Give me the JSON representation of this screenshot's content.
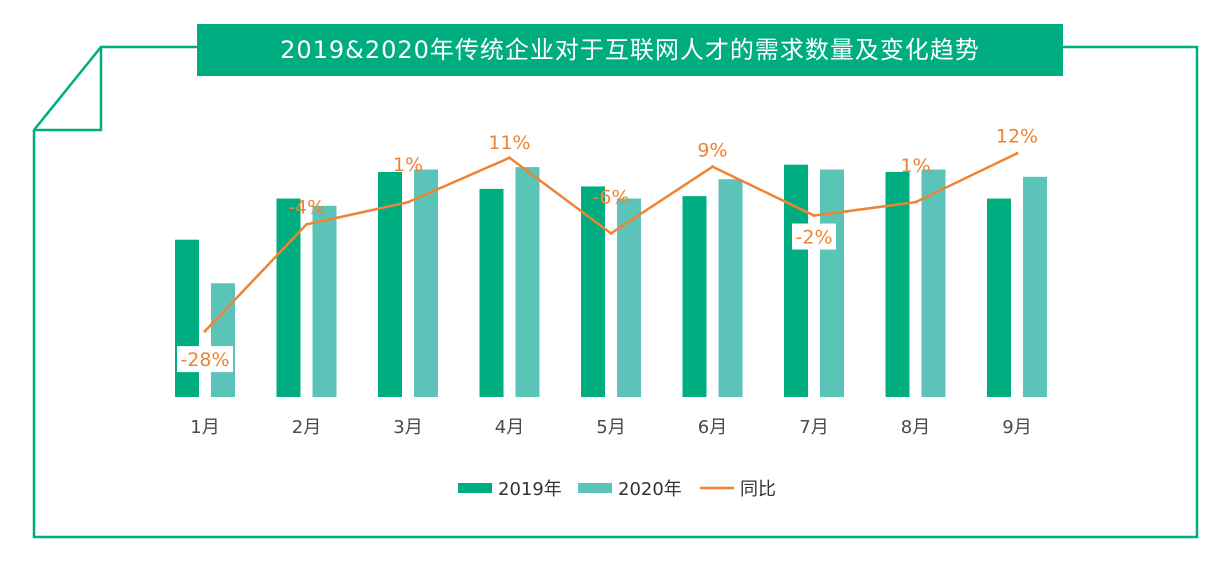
{
  "chart_data": {
    "type": "bar",
    "title": "2019&2020年传统企业对于互联网人才的需求数量及变化趋势",
    "categories": [
      "1月",
      "2月",
      "3月",
      "4月",
      "5月",
      "6月",
      "7月",
      "8月",
      "9月"
    ],
    "series": [
      {
        "name": "2019年",
        "type": "bar",
        "color": "#00ad80",
        "values": [
          65,
          82,
          93,
          86,
          87,
          83,
          96,
          93,
          82
        ]
      },
      {
        "name": "2020年",
        "type": "bar",
        "color": "#5bc3b7",
        "values": [
          47,
          79,
          94,
          95,
          82,
          90,
          94,
          94,
          91
        ]
      },
      {
        "name": "同比",
        "type": "line",
        "color": "#ee8433",
        "values": [
          -28,
          -4,
          1,
          11,
          -6,
          9,
          -2,
          1,
          12
        ],
        "labels": [
          "-28%",
          "-4%",
          "1%",
          "11%",
          "-6%",
          "9%",
          "-2%",
          "1%",
          "12%"
        ]
      }
    ],
    "ylim": [
      0,
      100
    ],
    "y2lim": [
      -30,
      15
    ],
    "xlabel": "",
    "ylabel": "",
    "grid": false,
    "legend": "bottom-center",
    "colors": {
      "frame": "#00ad80",
      "banner": "#00ad80"
    }
  }
}
